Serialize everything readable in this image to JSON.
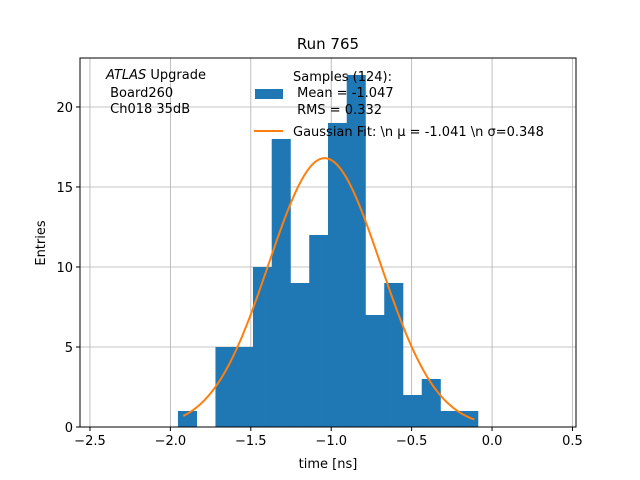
{
  "chart_data": {
    "type": "bar",
    "title": "Run 765",
    "xlabel": "time [ns]",
    "ylabel": "Entries",
    "xlim": [
      -2.562,
      0.522
    ],
    "ylim": [
      0,
      23.06
    ],
    "grid": true,
    "xticks": [
      -2.5,
      -2.0,
      -1.5,
      -1.0,
      -0.5,
      0.0,
      0.5
    ],
    "xtick_labels": [
      "−2.5",
      "−2.0",
      "−1.5",
      "−1.0",
      "−0.5",
      "0.0",
      "0.5"
    ],
    "yticks": [
      0,
      5,
      10,
      15,
      20
    ],
    "ytick_labels": [
      "0",
      "5",
      "10",
      "15",
      "20"
    ],
    "histogram": {
      "bin_start": -1.953,
      "bin_width": 0.1166,
      "counts": [
        1,
        0,
        5,
        5,
        10,
        18,
        9,
        12,
        19,
        22,
        7,
        9,
        2,
        3,
        1,
        1
      ],
      "color": "#1f77b4"
    },
    "fit": {
      "mu": -1.041,
      "sigma": 0.348,
      "amplitude": 16.8,
      "x_range": [
        -1.92,
        -0.11
      ],
      "color": "#ff7f0e"
    },
    "legend": {
      "placement": "top-center",
      "entries": [
        [
          "Samples (124):",
          " Mean = -1.047",
          " RMS = 0.332"
        ],
        [
          "Gaussian Fit: \\n μ = -1.041 \\n σ=0.348"
        ]
      ]
    },
    "annotation": {
      "line1_italic": "ATLAS",
      "line1_rest": " Upgrade",
      "line2": " Board260",
      "line3": " Ch018 35dB"
    }
  }
}
